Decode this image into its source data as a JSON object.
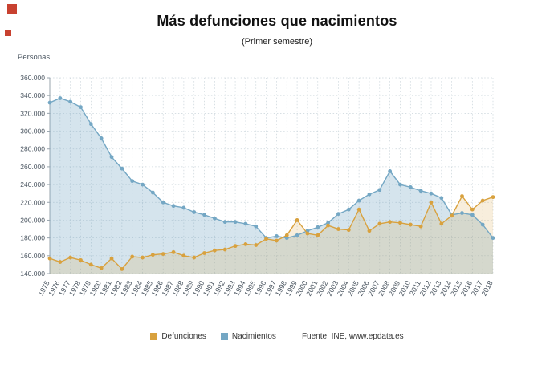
{
  "logo": {
    "color": "#c84130"
  },
  "chart_data": {
    "type": "line",
    "title": "Más defunciones que nacimientos",
    "subtitle": "(Primer semestre)",
    "ylabel": "Personas",
    "source": "Fuente: INE, www.epdata.es",
    "legend_position": "bottom",
    "grid": true,
    "ylim": [
      140000,
      360000
    ],
    "ytick_step": 20000,
    "x": [
      "1975",
      "1976",
      "1977",
      "1978",
      "1979",
      "1980",
      "1981",
      "1982",
      "1983",
      "1984",
      "1985",
      "1986",
      "1987",
      "1988",
      "1989",
      "1990",
      "1991",
      "1992",
      "1993",
      "1994",
      "1995",
      "1996",
      "1997",
      "1998",
      "1999",
      "2000",
      "2001",
      "2002",
      "2003",
      "2004",
      "2005",
      "2006",
      "2007",
      "2008",
      "2009",
      "2010",
      "2011",
      "2012",
      "2013",
      "2014",
      "2015",
      "2016",
      "2017",
      "2018"
    ],
    "series": [
      {
        "name": "Defunciones",
        "color": "#d8a13e",
        "fill": "rgba(216,161,62,0.18)",
        "values": [
          157000,
          153000,
          158000,
          155000,
          150000,
          146000,
          157000,
          145000,
          159000,
          158000,
          161000,
          162000,
          164000,
          160000,
          158000,
          163000,
          166000,
          167000,
          171000,
          173000,
          172000,
          179000,
          177000,
          183000,
          200000,
          185000,
          183000,
          194000,
          190000,
          189000,
          212000,
          188000,
          196000,
          198000,
          197000,
          195000,
          193000,
          220000,
          196000,
          205000,
          227000,
          212000,
          222000,
          226000
        ]
      },
      {
        "name": "Nacimientos",
        "color": "#74a7c4",
        "fill": "rgba(116,167,196,0.30)",
        "values": [
          332000,
          337000,
          333000,
          327000,
          308000,
          292000,
          271000,
          258000,
          244000,
          240000,
          231000,
          220000,
          216000,
          214000,
          209000,
          206000,
          202000,
          198000,
          198000,
          196000,
          193000,
          180000,
          182000,
          180000,
          183000,
          188000,
          192000,
          197000,
          207000,
          212000,
          222000,
          229000,
          234000,
          255000,
          240000,
          237000,
          233000,
          230000,
          225000,
          206000,
          208000,
          206000,
          195000,
          180000
        ]
      }
    ]
  }
}
